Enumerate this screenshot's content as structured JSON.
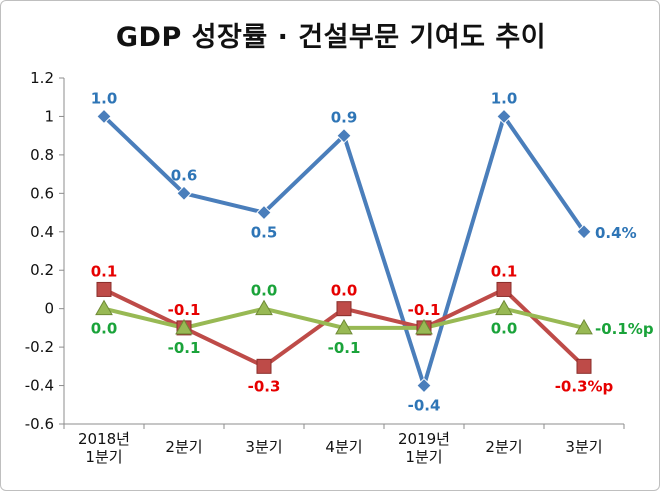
{
  "chart_data": {
    "type": "line",
    "title": "GDP 성장률 · 건설부문 기여도 추이",
    "categories": [
      [
        "2018년",
        "1분기"
      ],
      [
        "2분기"
      ],
      [
        "3분기"
      ],
      [
        "4분기"
      ],
      [
        "2019년",
        "1분기"
      ],
      [
        "2분기"
      ],
      [
        "3분기"
      ]
    ],
    "ylim": [
      -0.6,
      1.2
    ],
    "yticks": [
      "1.2",
      "1",
      "0.8",
      "0.6",
      "0.4",
      "0.2",
      "0",
      "-0.2",
      "-0.4",
      "-0.6"
    ],
    "grid": false,
    "series": [
      {
        "values": [
          1.0,
          0.6,
          0.5,
          0.9,
          -0.4,
          1.0,
          0.4
        ],
        "labels": [
          "1.0",
          "0.6",
          "0.5",
          "0.9",
          "-0.4",
          "1.0",
          "0.4%"
        ],
        "label_pos": [
          "above",
          "above",
          "below",
          "above",
          "below",
          "above",
          "right"
        ],
        "color": "#4a7ebb",
        "label_color": "#2e75b6",
        "marker": "diamond"
      },
      {
        "values": [
          0.1,
          -0.1,
          -0.3,
          0.0,
          -0.1,
          0.1,
          -0.3
        ],
        "labels": [
          "0.1",
          "-0.1",
          "-0.3",
          "0.0",
          "-0.1",
          "0.1",
          "-0.3%p"
        ],
        "label_pos": [
          "above",
          "above",
          "below",
          "above",
          "above",
          "above",
          "below"
        ],
        "color": "#be4b48",
        "label_color": "#e60000",
        "marker": "square"
      },
      {
        "values": [
          0.0,
          -0.1,
          0.0,
          -0.1,
          -0.1,
          0.0,
          -0.1
        ],
        "labels": [
          "0.0",
          "-0.1",
          "0.0",
          "-0.1",
          "",
          "0.0",
          "-0.1%p"
        ],
        "label_pos": [
          "below",
          "below",
          "above",
          "below",
          "below",
          "below",
          "right"
        ],
        "color": "#98b954",
        "label_color": "#1aa33a",
        "marker": "triangle"
      }
    ]
  }
}
